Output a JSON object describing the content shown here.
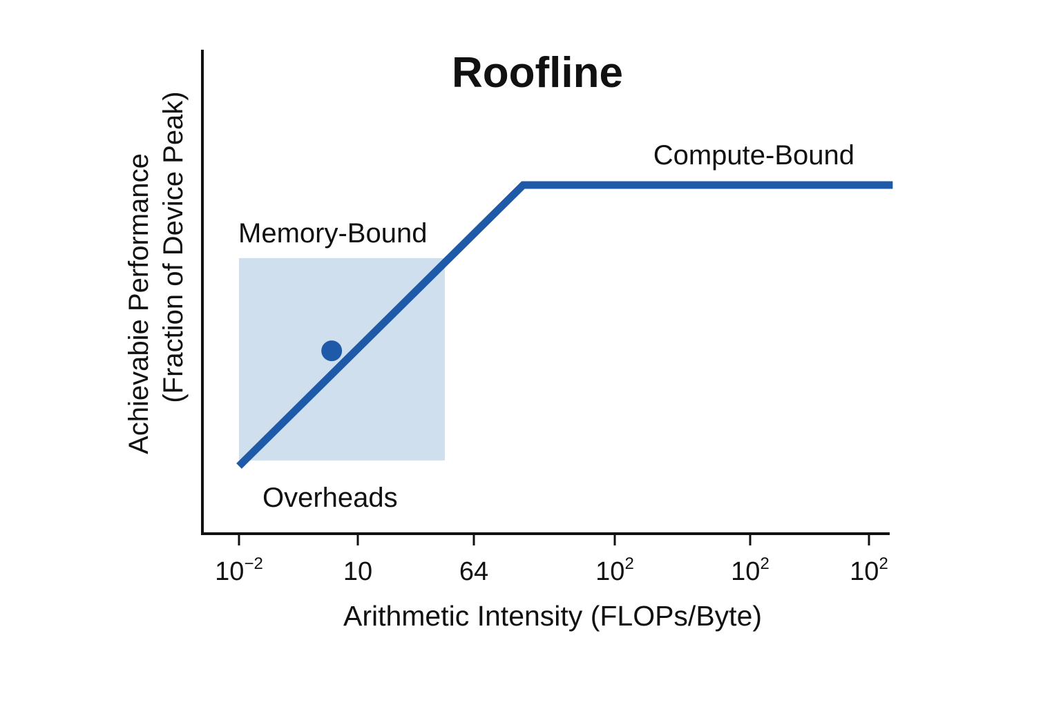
{
  "chart_data": {
    "type": "line",
    "title": "Roofline",
    "xlabel": "Arithmetic Intensity (FLOPs/Byte)",
    "ylabel_line1": "Achievabie Performance",
    "ylabel_line2": "(Fraction of Device Peak)",
    "x_tick_labels": [
      {
        "base": "10",
        "sup": "−2"
      },
      {
        "base": "10",
        "sup": ""
      },
      {
        "base": "64",
        "sup": ""
      },
      {
        "base": "10",
        "sup": "2"
      },
      {
        "base": "10",
        "sup": "2"
      },
      {
        "base": "10",
        "sup": "2"
      }
    ],
    "x_scale": "categorical",
    "y_ticks": false,
    "grid": false,
    "series": [
      {
        "points": [
          {
            "x": 0,
            "y": 0.0
          },
          {
            "x": 2.35,
            "y": 1.0
          },
          {
            "x": 5.2,
            "y": 1.0
          }
        ]
      }
    ],
    "ylim": [
      -0.21,
      1.21
    ],
    "highlight_region": {
      "x_from": 0,
      "x_to": 1.75,
      "y_from": 0.02,
      "y_to": 0.74
    },
    "marker": {
      "x": 0.78,
      "y": 0.41
    },
    "annotations": {
      "memory_bound": "Memory-Bound",
      "compute_bound": "Compute-Bound",
      "overheads": "Overheads"
    },
    "colors": {
      "line": "#1f5aa8",
      "region": "#d0dfee",
      "marker": "#1f5aa8",
      "axis": "#111111"
    }
  }
}
